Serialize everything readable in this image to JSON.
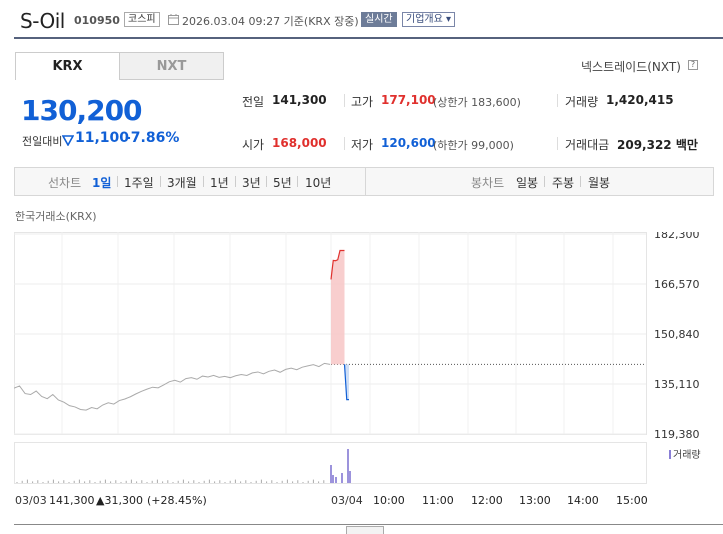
{
  "header": {
    "company_name": "S-Oil",
    "code": "010950",
    "market": "코스피",
    "timestamp": "2026.03.04 09:27 기준(KRX 장중)",
    "realtime_label": "실시간",
    "company_info_label": "기업개요 ▾"
  },
  "tabs": [
    {
      "label": "KRX",
      "active": true
    },
    {
      "label": "NXT",
      "active": false
    }
  ],
  "nxt_link": "넥스트레이드(NXT)",
  "nxt_help": "?",
  "price": {
    "current": "130,200",
    "change_label": "전일대비",
    "change": "11,100",
    "rate": "-7.86%"
  },
  "stats": {
    "prev_close": {
      "label": "전일",
      "value": "141,300"
    },
    "high": {
      "label": "고가",
      "value": "177,100",
      "limit": "(상한가 183,600)"
    },
    "volume": {
      "label": "거래량",
      "value": "1,420,415"
    },
    "open": {
      "label": "시가",
      "value": "168,000"
    },
    "low": {
      "label": "저가",
      "value": "120,600",
      "limit": "(하한가 99,000)"
    },
    "turnover": {
      "label": "거래대금",
      "value": "209,322 백만"
    }
  },
  "period_bar": {
    "line_chart_label": "선차트",
    "line_periods": [
      "1일",
      "1주일",
      "3개월",
      "1년",
      "3년",
      "5년",
      "10년"
    ],
    "candle_label": "봉차트",
    "candle_periods": [
      "일봉",
      "주봉",
      "월봉"
    ]
  },
  "market_caption": "한국거래소(KRX)",
  "chart_data": {
    "type": "line",
    "y_ticks": [
      "182,300",
      "166,570",
      "150,840",
      "135,110",
      "119,380"
    ],
    "ylim": [
      119380,
      182300
    ],
    "prev_close": 141300,
    "volume_legend": "거래량",
    "x_labels": [
      "03/03",
      "03/04",
      "10:00",
      "11:00",
      "12:00",
      "13:00",
      "14:00",
      "15:00"
    ],
    "prev_day_summary": {
      "close": "141,300",
      "change": "▲31,300",
      "rate": "(+28.45%)"
    },
    "prev_day_series": [
      133800,
      134500,
      132100,
      131800,
      132900,
      131200,
      130500,
      131800,
      130100,
      129400,
      128300,
      127900,
      127100,
      126900,
      127700,
      127300,
      128500,
      129200,
      128800,
      129900,
      130400,
      131100,
      132000,
      132800,
      133500,
      134100,
      133900,
      134800,
      135800,
      136300,
      135700,
      136800,
      137100,
      136600,
      137600,
      137300,
      137800,
      137200,
      137500,
      137100,
      137700,
      138100,
      137800,
      138600,
      138900,
      138300,
      139100,
      139500,
      138800,
      139700,
      140100,
      139600,
      140400,
      140800,
      141200,
      140600,
      141600,
      141300
    ],
    "today_series": [
      168000,
      174000,
      173900,
      174200,
      177100,
      177100,
      177100,
      130200,
      130200
    ]
  }
}
